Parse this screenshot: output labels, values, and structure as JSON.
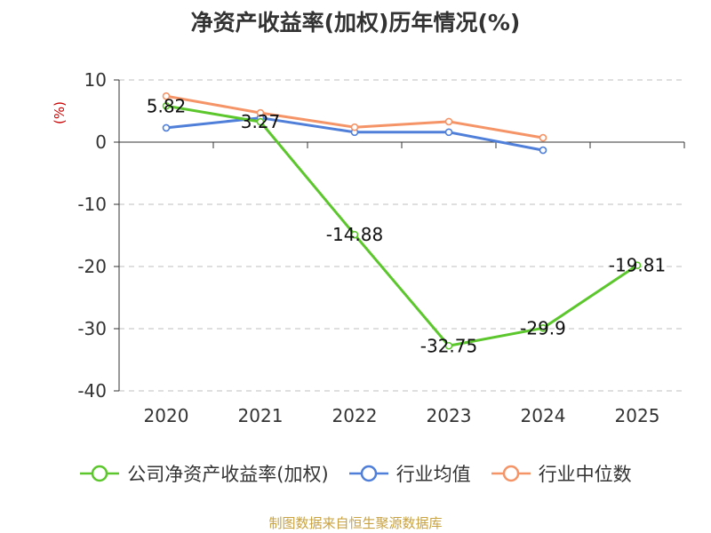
{
  "title": "净资产收益率(加权)历年情况(%)",
  "source": "制图数据来自恒生聚源数据库",
  "colors": {
    "company": "#5cc62d",
    "industry_avg": "#4f7fd9",
    "industry_median": "#f59467",
    "unit": "#cc0000",
    "grid": "#cccccc",
    "axis": "#333333",
    "source": "#c8a243"
  },
  "chart_data": {
    "type": "line",
    "title": "净资产收益率(加权)历年情况(%)",
    "ylabel": "(%)",
    "categories": [
      "2020",
      "2021",
      "2022",
      "2023",
      "2024",
      "2025"
    ],
    "ylim": [
      -40,
      10
    ],
    "yticks": [
      10,
      0,
      -10,
      -20,
      -30,
      -40
    ],
    "grid": "horizontal-dashed",
    "legend_position": "bottom",
    "series": [
      {
        "name": "公司净资产收益率(加权)",
        "color_key": "company",
        "values": [
          5.82,
          3.27,
          -14.88,
          -32.75,
          -29.9,
          -19.81
        ],
        "labels": [
          "5.82",
          "3.27",
          "-14.88",
          "-32.75",
          "-29.9",
          "-19.81"
        ]
      },
      {
        "name": "行业均值",
        "color_key": "industry_avg",
        "values": [
          2.3,
          3.9,
          1.6,
          1.6,
          -1.3,
          null
        ]
      },
      {
        "name": "行业中位数",
        "color_key": "industry_median",
        "values": [
          7.4,
          4.7,
          2.4,
          3.3,
          0.7,
          null
        ]
      }
    ]
  }
}
